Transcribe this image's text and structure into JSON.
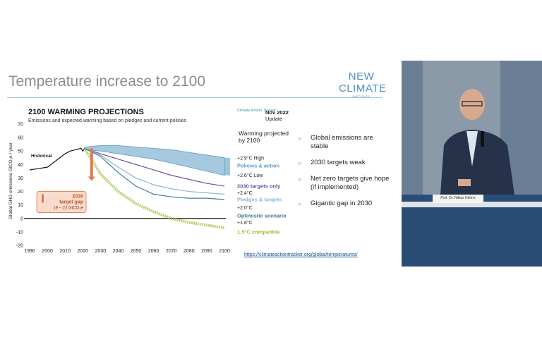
{
  "slide": {
    "title": "Temperature increase to 2100",
    "logo_text": "NEW CLIMATE",
    "logo_sub": "INSTITUTE",
    "url": "https://climateactiontracker.org/global/temperatures/"
  },
  "chart_panel": {
    "heading": "2100 WARMING PROJECTIONS",
    "subheading": "Emissions and expected warming based on pledges and current policies",
    "source_logo": "Climate Action Tracker",
    "date": "Nov 2022",
    "date_sub": "Update",
    "warming_heading": "Warming projected by 2100"
  },
  "bullets": [
    "Global emissions are stable",
    "2030 targets weak",
    "Net zero targets give hope (if implemented)",
    "Gigantic gap in 2030"
  ],
  "speaker": {
    "nameplate": "Prof. Dr. Niklas Höhne"
  },
  "colors": {
    "policies": "#5e9cc4",
    "targets_2030": "#6b4fa0",
    "pledges": "#8fb7d4",
    "optimistic": "#3f7f8f",
    "compatible": "#9ac23c",
    "gap": "#e07a4f",
    "historical": "#111111",
    "bullet_mark": "#e19a49"
  },
  "chart_data": {
    "type": "line",
    "ylabel": "Global GHG emissions GtCO₂e / year",
    "xlim": [
      1990,
      2100
    ],
    "ylim": [
      -20,
      70
    ],
    "x_ticks": [
      1990,
      2000,
      2010,
      2020,
      2030,
      2040,
      2050,
      2060,
      2070,
      2080,
      2090,
      2100
    ],
    "y_ticks": [
      -20,
      -10,
      0,
      10,
      20,
      30,
      40,
      50,
      60,
      70
    ],
    "series": [
      {
        "name": "Historical",
        "x": [
          1990,
          1995,
          2000,
          2005,
          2008,
          2010,
          2013,
          2016,
          2019,
          2020,
          2021
        ],
        "y": [
          36,
          37,
          38,
          43,
          46,
          48,
          50,
          51,
          52,
          50,
          52
        ]
      },
      {
        "name": "Policies & action",
        "x": [
          2021,
          2030,
          2040,
          2050,
          2060,
          2070,
          2080,
          2090,
          2100
        ],
        "y_high": [
          53,
          54,
          54,
          53,
          52,
          51,
          49,
          47,
          45
        ],
        "y_low": [
          51,
          50,
          48,
          46,
          44,
          41,
          38,
          35,
          32
        ]
      },
      {
        "name": "2030 targets only",
        "x": [
          2021,
          2030,
          2040,
          2050,
          2060,
          2070,
          2080,
          2090,
          2100
        ],
        "y": [
          52,
          48,
          44,
          40,
          36,
          32,
          29,
          26,
          24
        ]
      },
      {
        "name": "Pledges & targets",
        "x": [
          2021,
          2030,
          2040,
          2050,
          2060,
          2070,
          2080,
          2090,
          2100
        ],
        "y": [
          52,
          47,
          38,
          30,
          25,
          22,
          20,
          19,
          18
        ]
      },
      {
        "name": "Optimistic scenario",
        "x": [
          2021,
          2030,
          2040,
          2050,
          2060,
          2070,
          2080,
          2090,
          2100
        ],
        "y": [
          52,
          46,
          34,
          24,
          18,
          16,
          15,
          15,
          14
        ]
      },
      {
        "name": "1.5°C compatible",
        "x": [
          2021,
          2030,
          2040,
          2050,
          2060,
          2070,
          2080,
          2090,
          2100
        ],
        "y": [
          52,
          33,
          20,
          11,
          5,
          0,
          -3,
          -5,
          -7
        ]
      }
    ],
    "labels": [
      {
        "text": "+2.9°C High",
        "y": 45
      },
      {
        "text": "Policies & action",
        "y": 39
      },
      {
        "text": "+2.6°C Low",
        "y": 32
      },
      {
        "text": "2030 targets only",
        "y": 24
      },
      {
        "text": "+2.4°C",
        "y": 19
      },
      {
        "text": "Pledges & targets",
        "y": 14
      },
      {
        "text": "+2.0°C",
        "y": 8
      },
      {
        "text": "Optimistic scenario",
        "y": 2
      },
      {
        "text": "+1.8°C",
        "y": -3
      },
      {
        "text": "1.5°C compatible",
        "y": -10
      }
    ],
    "annotation": {
      "line1": "2030",
      "line2": "target gap",
      "line3": "19 – 22 GtCO₂e"
    }
  }
}
